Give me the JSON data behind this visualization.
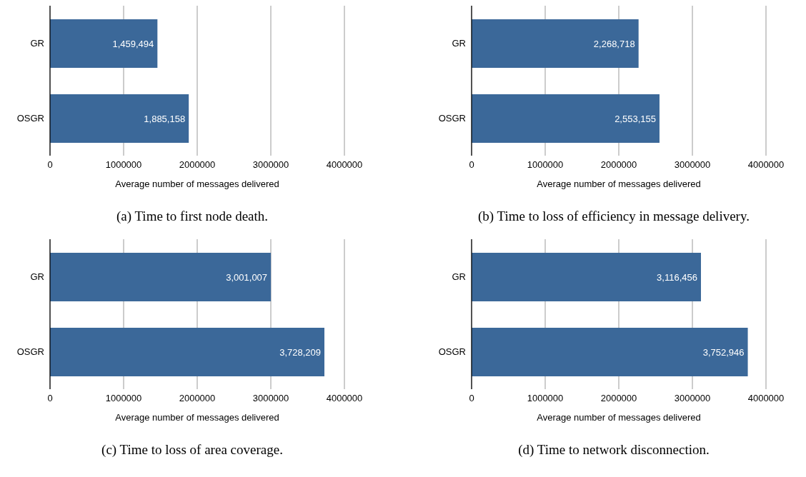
{
  "chart_data": [
    {
      "type": "bar",
      "orientation": "horizontal",
      "title": "(a) Time to first node death.",
      "xlabel": "Average number of messages delivered",
      "categories": [
        "GR",
        "OSGR"
      ],
      "values": [
        1459494,
        1885158
      ],
      "value_labels": [
        "1,459,494",
        "1,885,158"
      ],
      "color": "#3b6899",
      "xlim": [
        0,
        4000000
      ],
      "xticks": [
        0,
        1000000,
        2000000,
        3000000,
        4000000
      ],
      "grid": "x",
      "legend": false
    },
    {
      "type": "bar",
      "orientation": "horizontal",
      "title": "(b) Time to loss of efficiency in message delivery.",
      "xlabel": "Average number of messages delivered",
      "categories": [
        "GR",
        "OSGR"
      ],
      "values": [
        2268718,
        2553155
      ],
      "value_labels": [
        "2,268,718",
        "2,553,155"
      ],
      "color": "#3b6899",
      "xlim": [
        0,
        4000000
      ],
      "xticks": [
        0,
        1000000,
        2000000,
        3000000,
        4000000
      ],
      "grid": "x",
      "legend": false
    },
    {
      "type": "bar",
      "orientation": "horizontal",
      "title": "(c) Time to loss of area coverage.",
      "xlabel": "Average number of messages delivered",
      "categories": [
        "GR",
        "OSGR"
      ],
      "values": [
        3001007,
        3728209
      ],
      "value_labels": [
        "3,001,007",
        "3,728,209"
      ],
      "color": "#3b6899",
      "xlim": [
        0,
        4000000
      ],
      "xticks": [
        0,
        1000000,
        2000000,
        3000000,
        4000000
      ],
      "grid": "x",
      "legend": false
    },
    {
      "type": "bar",
      "orientation": "horizontal",
      "title": "(d) Time to network disconnection.",
      "xlabel": "Average number of messages delivered",
      "categories": [
        "GR",
        "OSGR"
      ],
      "values": [
        3116456,
        3752946
      ],
      "value_labels": [
        "3,116,456",
        "3,752,946"
      ],
      "color": "#3b6899",
      "xlim": [
        0,
        4000000
      ],
      "xticks": [
        0,
        1000000,
        2000000,
        3000000,
        4000000
      ],
      "grid": "x",
      "legend": false
    }
  ]
}
